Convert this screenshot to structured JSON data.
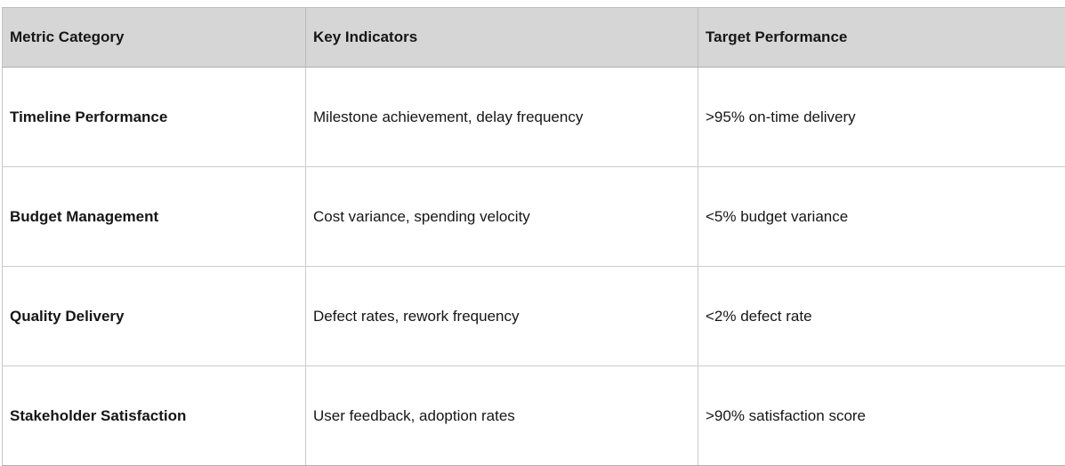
{
  "table": {
    "name": "project-metrics-table",
    "columns": [
      "Metric Category",
      "Key Indicators",
      "Target Performance"
    ],
    "rows": [
      {
        "category": "Timeline Performance",
        "indicators": "Milestone achievement, delay frequency",
        "target": ">95% on-time delivery"
      },
      {
        "category": "Budget Management",
        "indicators": "Cost variance, spending velocity",
        "target": "<5% budget variance"
      },
      {
        "category": "Quality Delivery",
        "indicators": "Defect rates, rework frequency",
        "target": "<2% defect rate"
      },
      {
        "category": "Stakeholder Satisfaction",
        "indicators": "User feedback, adoption rates",
        "target": ">90% satisfaction score"
      }
    ],
    "colors": {
      "header_background": "#d6d6d6",
      "body_background": "#ffffff",
      "border": "#cbcbcb",
      "header_border_bottom": "#aeaeae",
      "text": "#161616"
    }
  }
}
